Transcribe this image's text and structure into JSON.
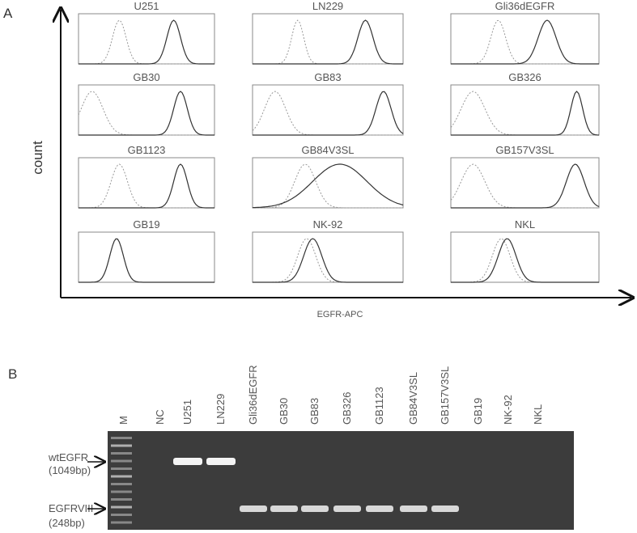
{
  "panel_a": {
    "label": "A",
    "y_axis_label": "count",
    "x_axis_label": "EGFR-APC",
    "histograms": [
      {
        "title": "U251"
      },
      {
        "title": "LN229"
      },
      {
        "title": "Gli36dEGFR"
      },
      {
        "title": "GB30"
      },
      {
        "title": "GB83"
      },
      {
        "title": "GB326"
      },
      {
        "title": "GB1123"
      },
      {
        "title": "GB84V3SL"
      },
      {
        "title": "GB157V3SL"
      },
      {
        "title": "GB19"
      },
      {
        "title": "NK-92"
      },
      {
        "title": "NKL"
      }
    ]
  },
  "panel_b": {
    "label": "B",
    "lanes": [
      "M",
      "NC",
      "U251",
      "LN229",
      "Gli36dEGFR",
      "GB30",
      "GB83",
      "GB326",
      "GB1123",
      "GB84V3SL",
      "GB157V3SL",
      "GB19",
      "NK-92",
      "NKL"
    ],
    "bands": [
      {
        "name": "wtEGFR",
        "size": "(1049bp)"
      },
      {
        "name": "EGFRVIII",
        "size": "(248bp)"
      }
    ]
  }
}
